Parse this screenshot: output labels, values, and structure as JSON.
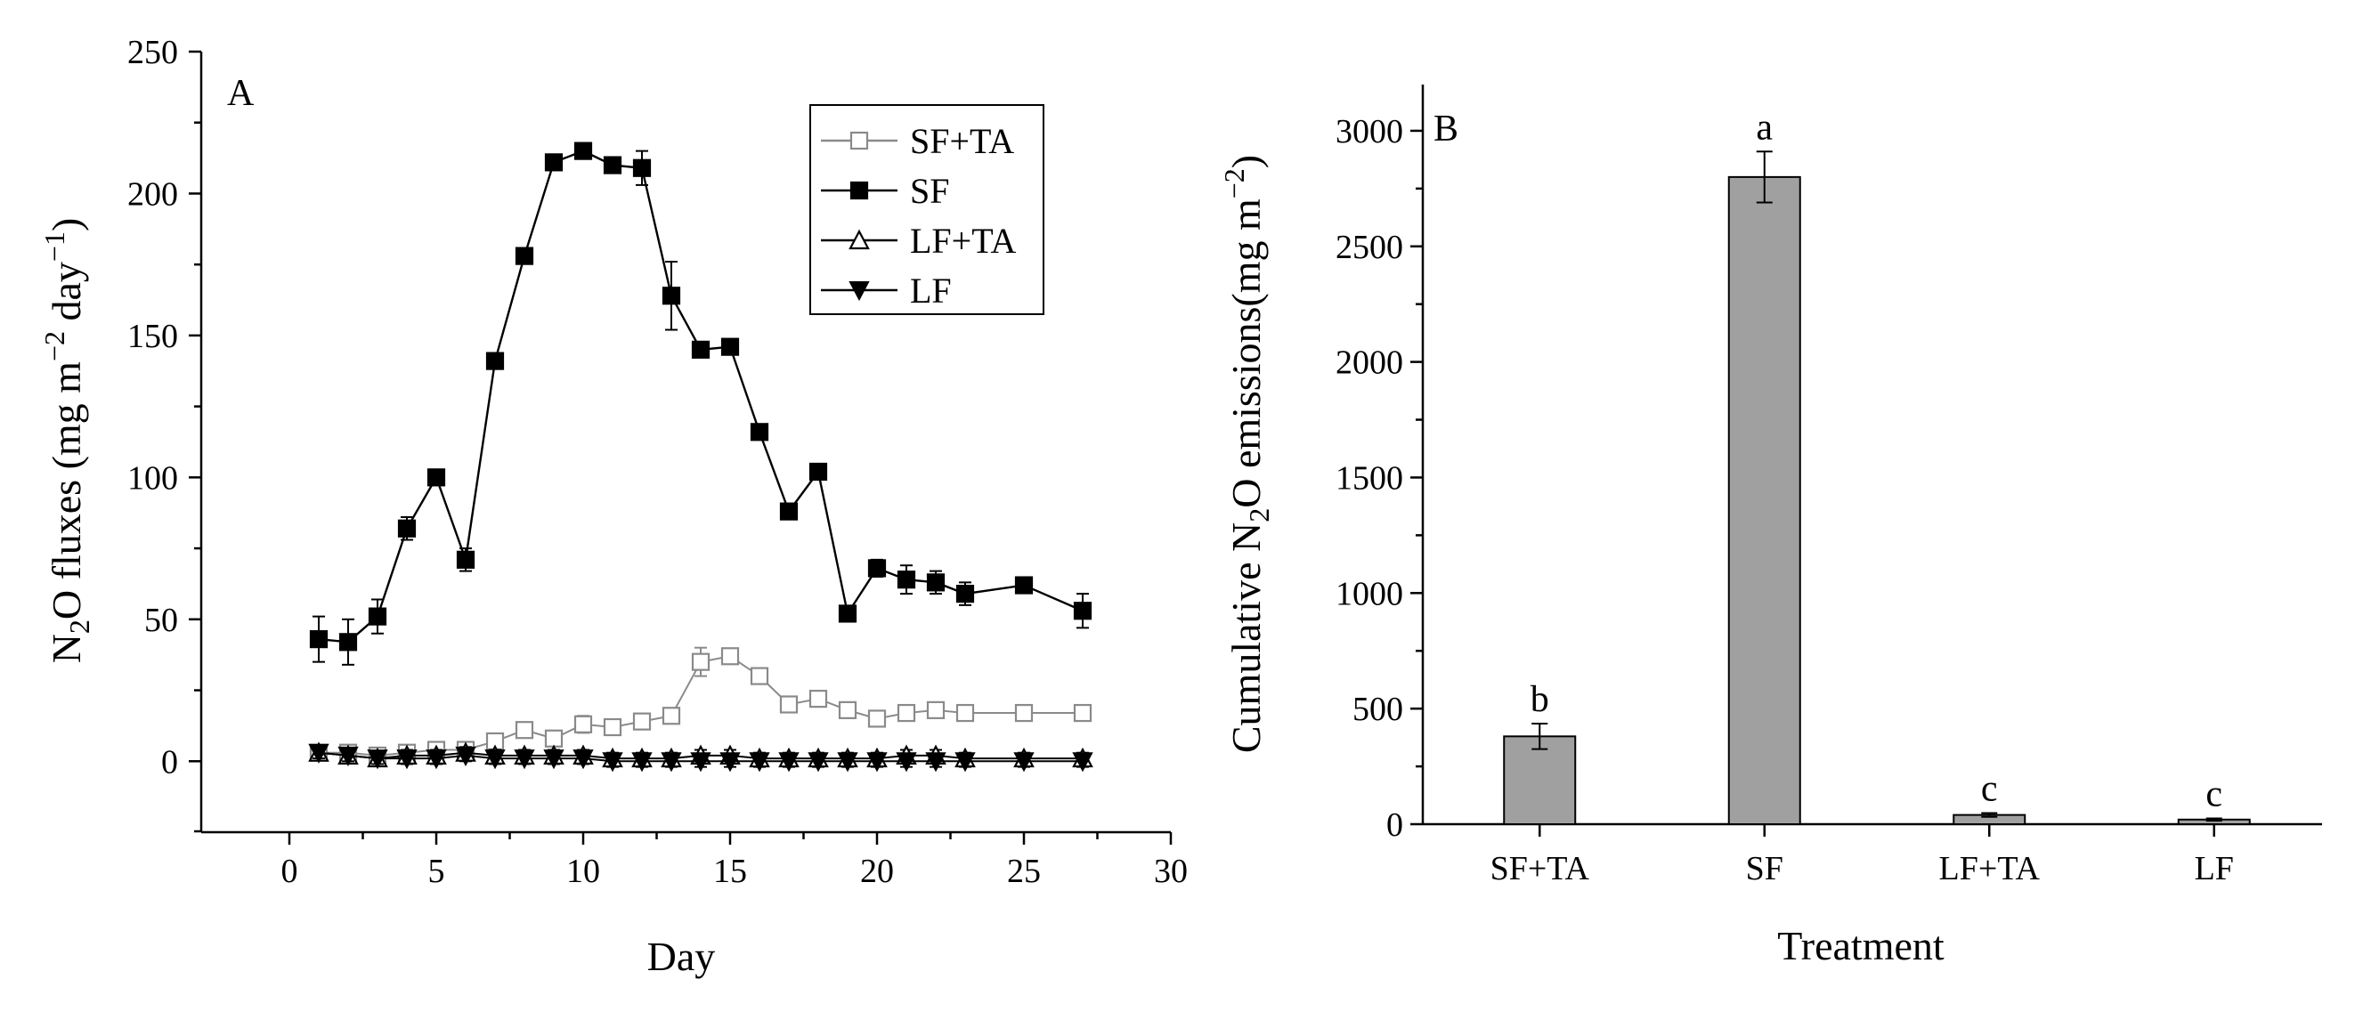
{
  "chart_data": [
    {
      "panel": "A",
      "type": "line",
      "title": "",
      "xlabel": "Day",
      "ylabel_main": "N",
      "ylabel_sub": "2",
      "ylabel_rest": "O fluxes (mg m",
      "ylabel_sup1": "−2",
      "ylabel_mid": " day",
      "ylabel_sup2": "−1",
      "ylabel_end": ")",
      "xlim": [
        -3,
        30
      ],
      "ylim": [
        -25,
        250
      ],
      "xticks": [
        "0",
        "5",
        "10",
        "15",
        "20",
        "25",
        "30"
      ],
      "yticks": [
        "0",
        "50",
        "100",
        "150",
        "200",
        "250"
      ],
      "legend": [
        "SF+TA",
        "SF",
        "LF+TA",
        "LF"
      ],
      "series": [
        {
          "name": "SF+TA",
          "marker": "open-square",
          "color": "#8a8a8a",
          "x": [
            1,
            2,
            3,
            4,
            5,
            6,
            7,
            8,
            9,
            10,
            11,
            12,
            13,
            14,
            15,
            16,
            17,
            18,
            19,
            20,
            21,
            22,
            23,
            25,
            27
          ],
          "y": [
            3,
            3,
            2,
            3,
            4,
            4,
            7,
            11,
            8,
            13,
            12,
            14,
            16,
            35,
            37,
            30,
            20,
            22,
            18,
            15,
            17,
            18,
            17,
            17,
            17
          ],
          "err": [
            2,
            2,
            2,
            2,
            2,
            2,
            2,
            2,
            2,
            3,
            2,
            2,
            2,
            5,
            2,
            2,
            2,
            2,
            2,
            2,
            2,
            2,
            2,
            2,
            2
          ]
        },
        {
          "name": "SF",
          "marker": "filled-square",
          "color": "#000000",
          "x": [
            1,
            2,
            3,
            4,
            5,
            6,
            7,
            8,
            9,
            10,
            11,
            12,
            13,
            14,
            15,
            16,
            17,
            18,
            19,
            20,
            21,
            22,
            23,
            25,
            27
          ],
          "y": [
            43,
            42,
            51,
            82,
            100,
            71,
            141,
            178,
            211,
            215,
            210,
            209,
            164,
            145,
            146,
            116,
            88,
            102,
            52,
            68,
            64,
            63,
            59,
            62,
            53
          ],
          "err": [
            8,
            8,
            6,
            4,
            2,
            4,
            2,
            2,
            2,
            2,
            2,
            6,
            12,
            2,
            2,
            2,
            2,
            2,
            2,
            3,
            5,
            4,
            4,
            2,
            6
          ]
        },
        {
          "name": "LF+TA",
          "marker": "open-triangle",
          "color": "#000000",
          "x": [
            1,
            2,
            3,
            4,
            5,
            6,
            7,
            8,
            9,
            10,
            11,
            12,
            13,
            14,
            15,
            16,
            17,
            18,
            19,
            20,
            21,
            22,
            23,
            25,
            27
          ],
          "y": [
            3,
            2,
            1,
            2,
            2,
            3,
            2,
            2,
            2,
            2,
            1,
            1,
            1,
            2,
            2,
            1,
            1,
            1,
            1,
            1,
            2,
            2,
            1,
            1,
            1
          ],
          "err": [
            2,
            2,
            2,
            2,
            2,
            2,
            2,
            2,
            2,
            2,
            2,
            2,
            2,
            2,
            2,
            2,
            2,
            2,
            2,
            2,
            2,
            2,
            2,
            2,
            2
          ]
        },
        {
          "name": "LF",
          "marker": "filled-down-triangle",
          "color": "#000000",
          "x": [
            1,
            2,
            3,
            4,
            5,
            6,
            7,
            8,
            9,
            10,
            11,
            12,
            13,
            14,
            15,
            16,
            17,
            18,
            19,
            20,
            21,
            22,
            23,
            25,
            27
          ],
          "y": [
            3,
            2,
            1,
            1,
            1,
            2,
            1,
            1,
            1,
            1,
            0,
            0,
            0,
            0,
            0,
            0,
            0,
            0,
            0,
            0,
            0,
            0,
            0,
            0,
            0
          ],
          "err": [
            2,
            2,
            2,
            2,
            2,
            2,
            2,
            2,
            2,
            2,
            2,
            2,
            2,
            2,
            2,
            2,
            2,
            2,
            2,
            2,
            2,
            2,
            2,
            2,
            2
          ]
        }
      ]
    },
    {
      "panel": "B",
      "type": "bar",
      "title": "",
      "xlabel": "Treatment",
      "ylabel_pre": "Cumulative N",
      "ylabel_sub": "2",
      "ylabel_mid": "O emissions(mg m",
      "ylabel_sup": "−2",
      "ylabel_end": ")",
      "ylim": [
        0,
        3200
      ],
      "yticks": [
        "0",
        "500",
        "1000",
        "1500",
        "2000",
        "2500",
        "3000"
      ],
      "categories": [
        "SF+TA",
        "SF",
        "LF+TA",
        "LF"
      ],
      "values": [
        380,
        2800,
        40,
        20
      ],
      "errors": [
        55,
        110,
        8,
        5
      ],
      "significance": [
        "b",
        "a",
        "c",
        "c"
      ],
      "bar_color": "#a0a0a0"
    }
  ]
}
